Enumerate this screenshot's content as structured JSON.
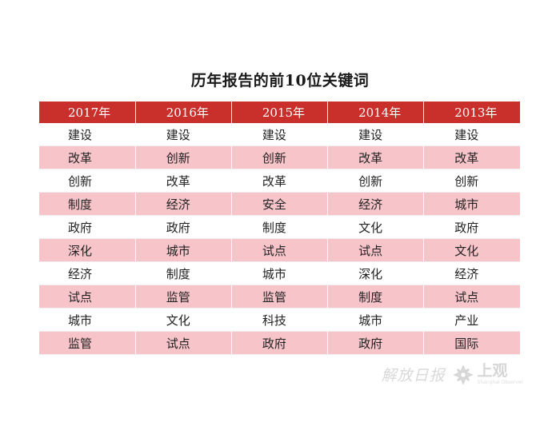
{
  "title": "历年报告的前10位关键词",
  "table": {
    "headers": [
      "2017年",
      "2016年",
      "2015年",
      "2014年",
      "2013年"
    ],
    "rows": [
      [
        "建设",
        "建设",
        "建设",
        "建设",
        "建设"
      ],
      [
        "改革",
        "创新",
        "创新",
        "改革",
        "改革"
      ],
      [
        "创新",
        "改革",
        "改革",
        "创新",
        "创新"
      ],
      [
        "制度",
        "经济",
        "安全",
        "经济",
        "城市"
      ],
      [
        "政府",
        "政府",
        "制度",
        "文化",
        "政府"
      ],
      [
        "深化",
        "城市",
        "试点",
        "试点",
        "文化"
      ],
      [
        "经济",
        "制度",
        "城市",
        "深化",
        "经济"
      ],
      [
        "试点",
        "监管",
        "监管",
        "制度",
        "试点"
      ],
      [
        "城市",
        "文化",
        "科技",
        "城市",
        "产业"
      ],
      [
        "监管",
        "试点",
        "政府",
        "政府",
        "国际"
      ]
    ]
  },
  "watermark": {
    "calligraphy": "解放日报",
    "brand": "上观",
    "brand_sub": "Shanghai Observer",
    "logo_icon": "flower-logo-icon"
  },
  "colors": {
    "header_bg": "#c9302c",
    "stripe_bg": "#f7c4c9"
  }
}
